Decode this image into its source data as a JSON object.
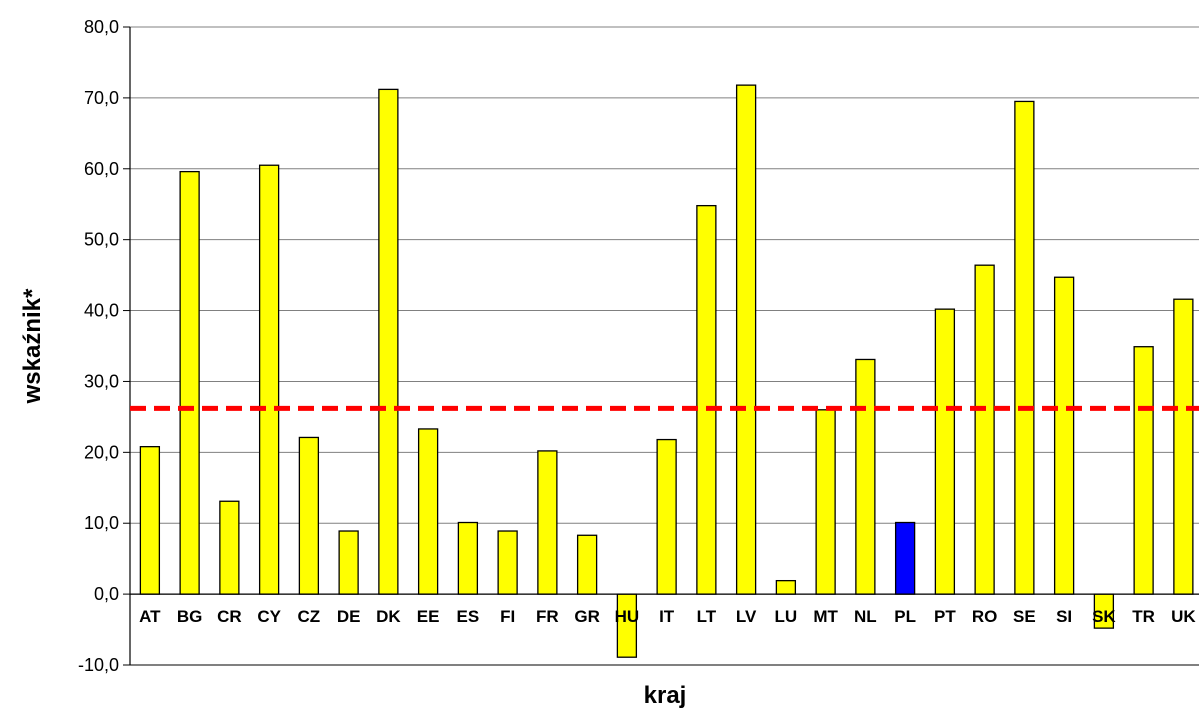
{
  "chart_data": {
    "type": "bar",
    "title": "",
    "xlabel": "kraj",
    "ylabel": "wskaźnik*",
    "ylim": [
      -10,
      80
    ],
    "ytick_step": 10,
    "grid": true,
    "categories": [
      "AT",
      "BG",
      "CR",
      "CY",
      "CZ",
      "DE",
      "DK",
      "EE",
      "ES",
      "FI",
      "FR",
      "GR",
      "HU",
      "IT",
      "LT",
      "LV",
      "LU",
      "MT",
      "NL",
      "PL",
      "PT",
      "RO",
      "SE",
      "SI",
      "SK",
      "TR",
      "UK"
    ],
    "values": [
      20.8,
      59.6,
      13.1,
      60.5,
      22.1,
      8.9,
      71.2,
      23.3,
      10.1,
      8.9,
      20.2,
      8.3,
      -8.9,
      21.8,
      54.8,
      71.8,
      1.9,
      26.0,
      33.1,
      10.1,
      40.2,
      46.4,
      69.5,
      44.7,
      -4.8,
      34.9,
      41.6
    ],
    "highlight_category": "PL",
    "reference_line": 26.2,
    "colors": {
      "bar": "#ffff00",
      "highlight": "#0000ff",
      "bar_stroke": "#000000",
      "reference_line": "#ff0000",
      "grid": "#808080"
    }
  }
}
